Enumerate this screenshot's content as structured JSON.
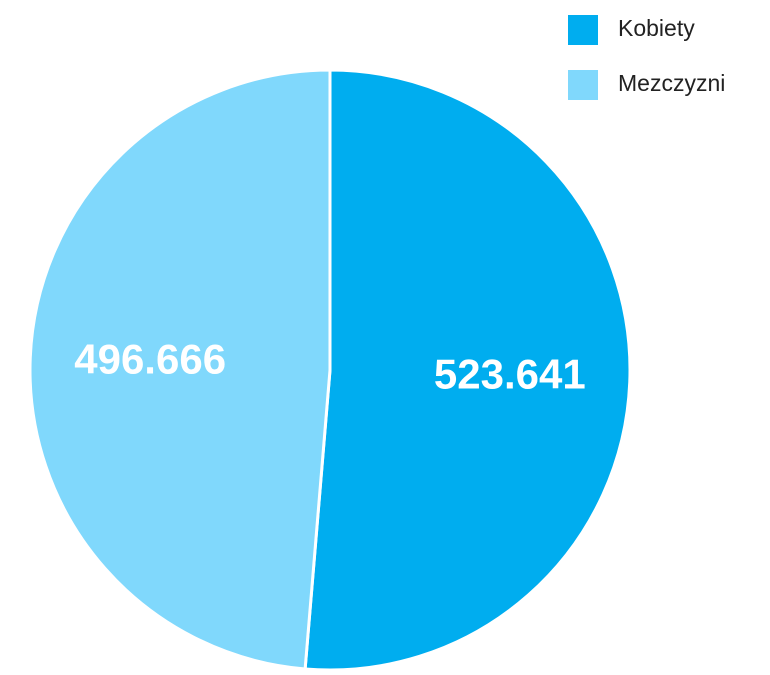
{
  "chart_data": {
    "type": "pie",
    "categories": [
      "Kobiety",
      "Mezczyzni"
    ],
    "values": [
      523.641,
      496.666
    ],
    "colors": [
      "#00adef",
      "#80d8fc"
    ],
    "legend": "top-right"
  }
}
